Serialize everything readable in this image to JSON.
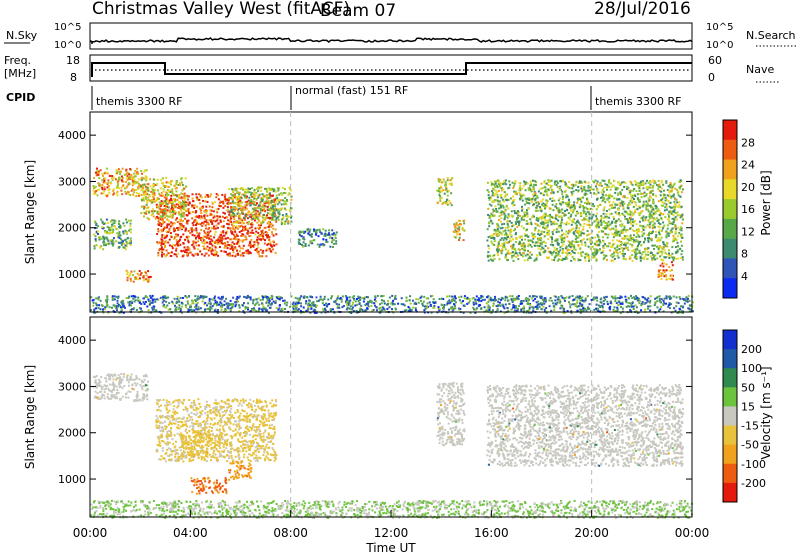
{
  "header": {
    "title": "Christmas Valley West (fitACF)",
    "beam": "Beam 07",
    "date": "28/Jul/2016"
  },
  "strip": {
    "nsky_label": "N.Sky",
    "nsearch_label": "N.Search",
    "freq_label_1": "Freq.",
    "freq_label_2": "[MHz]",
    "nave_label": "Nave",
    "cpid_label": "CPID",
    "nsky_ticks": [
      "10^5",
      "10^0"
    ],
    "nsearch_ticks": [
      "10^5",
      "10^0"
    ],
    "freq_ticks": [
      "18",
      "8"
    ],
    "nave_ticks": [
      "60",
      "0"
    ],
    "cpid_segments": [
      {
        "label": "themis 3300 RF",
        "start": 0,
        "end": 8
      },
      {
        "label": "normal (fast) 151 RF",
        "start": 8,
        "end": 20
      },
      {
        "label": "themis 3300 RF",
        "start": 20,
        "end": 24
      }
    ]
  },
  "panels": {
    "power": {
      "ylabel": "Slant Range [km]",
      "cbar_label": "Power [dB]",
      "cbar_ticks": [
        "28",
        "24",
        "20",
        "16",
        "12",
        "8",
        "4"
      ]
    },
    "velocity": {
      "ylabel": "Slant Range [km]",
      "cbar_label": "Velocity [m s⁻¹]",
      "cbar_ticks": [
        "200",
        "100",
        "50",
        "15",
        "-15",
        "-50",
        "-100",
        "-200"
      ]
    }
  },
  "axis": {
    "xlabel": "Time UT",
    "xticks": [
      "00:00",
      "04:00",
      "08:00",
      "12:00",
      "16:00",
      "20:00",
      "00:00"
    ],
    "yticks": [
      "4000",
      "3000",
      "2000",
      "1000"
    ]
  },
  "colors": {
    "power_scale": [
      "#0b2cf0",
      "#2f55b8",
      "#3c8a70",
      "#58a84a",
      "#9acb2e",
      "#e8d82a",
      "#f0a21c",
      "#ee5c12",
      "#e41a0c"
    ],
    "velocity_scale": [
      "#e41a0c",
      "#ee5c12",
      "#f0a21c",
      "#e8c23a",
      "#c8c8c0",
      "#6cc43c",
      "#2f8a50",
      "#1f5aa8",
      "#1230d0"
    ],
    "ground_scatter": "#c8c8c0"
  },
  "chart_data": [
    {
      "type": "heatmap",
      "name": "Power",
      "x_range_hours": [
        0,
        24
      ],
      "y_range_km": [
        180,
        4500
      ],
      "value_range_db": [
        0,
        30
      ],
      "scatter_regions": [
        {
          "t0": 0.1,
          "t1": 2.3,
          "r0": 2700,
          "r1": 3300,
          "power": 21
        },
        {
          "t0": 0.1,
          "t1": 1.6,
          "r0": 1550,
          "r1": 2200,
          "power": 12
        },
        {
          "t0": 1.4,
          "t1": 2.4,
          "r0": 820,
          "r1": 1100,
          "power": 22
        },
        {
          "t0": 2.6,
          "t1": 7.4,
          "r0": 1400,
          "r1": 2750,
          "power": 26
        },
        {
          "t0": 2.0,
          "t1": 3.8,
          "r0": 2200,
          "r1": 3100,
          "power": 18
        },
        {
          "t0": 5.5,
          "t1": 8.0,
          "r0": 2100,
          "r1": 2900,
          "power": 14
        },
        {
          "t0": 8.2,
          "t1": 9.8,
          "r0": 1600,
          "r1": 2000,
          "power": 8
        },
        {
          "t0": 13.8,
          "t1": 14.4,
          "r0": 2500,
          "r1": 3100,
          "power": 16
        },
        {
          "t0": 14.4,
          "t1": 14.9,
          "r0": 1750,
          "r1": 2200,
          "power": 18
        },
        {
          "t0": 15.8,
          "t1": 23.6,
          "r0": 1300,
          "r1": 3050,
          "power": 14
        },
        {
          "t0": 22.6,
          "t1": 23.2,
          "r0": 900,
          "r1": 1300,
          "power": 24
        },
        {
          "t0": 0.0,
          "t1": 24.0,
          "r0": 180,
          "r1": 550,
          "power": 8
        }
      ]
    },
    {
      "type": "heatmap",
      "name": "Velocity",
      "x_range_hours": [
        0,
        24
      ],
      "y_range_km": [
        180,
        4500
      ],
      "value_range_ms": [
        -250,
        250
      ],
      "scatter_regions": [
        {
          "t0": 0.1,
          "t1": 2.3,
          "r0": 2700,
          "r1": 3300,
          "velocity": 0
        },
        {
          "t0": 2.6,
          "t1": 7.4,
          "r0": 1400,
          "r1": 2750,
          "velocity": -40
        },
        {
          "t0": 3.6,
          "t1": 4.8,
          "r0": 1500,
          "r1": 2000,
          "velocity": -60
        },
        {
          "t0": 4.0,
          "t1": 5.4,
          "r0": 700,
          "r1": 1050,
          "velocity": -150
        },
        {
          "t0": 5.5,
          "t1": 6.4,
          "r0": 1000,
          "r1": 1400,
          "velocity": -120
        },
        {
          "t0": 13.8,
          "t1": 14.9,
          "r0": 1750,
          "r1": 3100,
          "velocity": 0
        },
        {
          "t0": 15.8,
          "t1": 23.6,
          "r0": 1300,
          "r1": 3050,
          "velocity": 0
        },
        {
          "t0": 0.0,
          "t1": 24.0,
          "r0": 180,
          "r1": 550,
          "velocity": 30
        }
      ]
    }
  ]
}
